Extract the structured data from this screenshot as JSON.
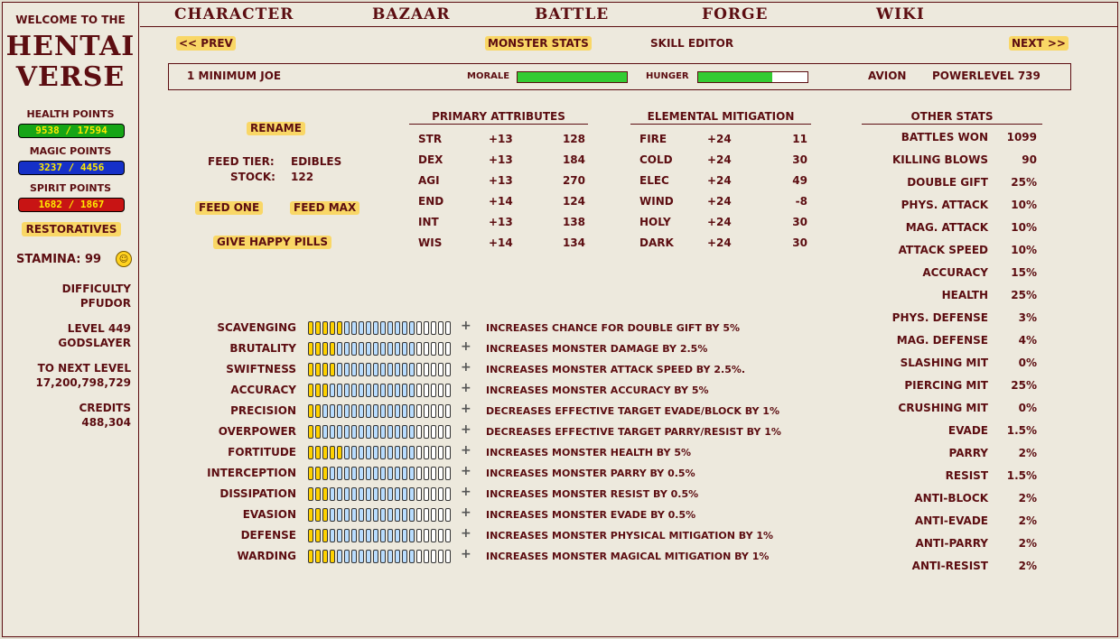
{
  "sidebar": {
    "welcome": "Welcome to the",
    "logo_line1": "HENTAI",
    "logo_line2": "VERSE",
    "health_label": "Health points",
    "health_value": "9538 / 17594",
    "magic_label": "Magic points",
    "magic_value": "3237 / 4456",
    "spirit_label": "Spirit points",
    "spirit_value": "1682 / 1867",
    "restoratives": "Restoratives",
    "stamina": "Stamina: 99",
    "difficulty_label": "Difficulty",
    "difficulty_value": "PFUDOR",
    "level_label": "Level 449",
    "level_title": "Godslayer",
    "next_level_label": "To next level",
    "next_level_value": "17,200,798,729",
    "credits_label": "Credits",
    "credits_value": "488,304",
    "colors": {
      "health": "#16a516",
      "magic": "#1530c8",
      "spirit": "#c81414"
    }
  },
  "nav": {
    "items": [
      "Character",
      "Bazaar",
      "Battle",
      "Forge",
      "Wiki"
    ]
  },
  "subnav": {
    "prev": "<< Prev",
    "monster_stats": "Monster Stats",
    "skill_editor": "Skill Editor",
    "next": "Next >>"
  },
  "monster": {
    "name": "1  Minimum Joe",
    "morale_label": "Morale",
    "morale_value": 1.0,
    "hunger_label": "Hunger",
    "hunger_value": 0.68,
    "owner": "Avion",
    "powerlevel": "Powerlevel  739"
  },
  "actions": {
    "rename": "Rename",
    "feed_tier_label": "Feed Tier:",
    "feed_tier_value": "Edibles",
    "stock_label": "Stock:",
    "stock_value": "122",
    "feed_one": "Feed One",
    "feed_max": "Feed Max",
    "give_pills": "Give Happy Pills"
  },
  "primary": {
    "header": "Primary Attributes",
    "rows": [
      {
        "name": "STR",
        "bonus": "+13",
        "value": "128"
      },
      {
        "name": "DEX",
        "bonus": "+13",
        "value": "184"
      },
      {
        "name": "AGI",
        "bonus": "+13",
        "value": "270"
      },
      {
        "name": "END",
        "bonus": "+14",
        "value": "124"
      },
      {
        "name": "INT",
        "bonus": "+13",
        "value": "138"
      },
      {
        "name": "WIS",
        "bonus": "+14",
        "value": "134"
      }
    ]
  },
  "elemental": {
    "header": "Elemental Mitigation",
    "rows": [
      {
        "name": "Fire",
        "bonus": "+24",
        "value": "11"
      },
      {
        "name": "Cold",
        "bonus": "+24",
        "value": "30"
      },
      {
        "name": "Elec",
        "bonus": "+24",
        "value": "49"
      },
      {
        "name": "Wind",
        "bonus": "+24",
        "value": "-8"
      },
      {
        "name": "Holy",
        "bonus": "+24",
        "value": "30"
      },
      {
        "name": "Dark",
        "bonus": "+24",
        "value": "30"
      }
    ]
  },
  "other": {
    "header": "Other Stats",
    "rows": [
      {
        "label": "Battles Won",
        "value": "1099"
      },
      {
        "label": "Killing Blows",
        "value": "90"
      },
      {
        "label": "Double Gift",
        "value": "25%"
      },
      {
        "label": "Phys. Attack",
        "value": "10%"
      },
      {
        "label": "Mag. Attack",
        "value": "10%"
      },
      {
        "label": "Attack Speed",
        "value": "10%"
      },
      {
        "label": "Accuracy",
        "value": "15%"
      },
      {
        "label": "Health",
        "value": "25%"
      },
      {
        "label": "Phys. Defense",
        "value": "3%"
      },
      {
        "label": "Mag. Defense",
        "value": "4%"
      },
      {
        "label": "Slashing Mit",
        "value": "0%"
      },
      {
        "label": "Piercing Mit",
        "value": "25%"
      },
      {
        "label": "Crushing Mit",
        "value": "0%"
      },
      {
        "label": "Evade",
        "value": "1.5%"
      },
      {
        "label": "Parry",
        "value": "2%"
      },
      {
        "label": "Resist",
        "value": "1.5%"
      },
      {
        "label": "Anti-Block",
        "value": "2%"
      },
      {
        "label": "Anti-Evade",
        "value": "2%"
      },
      {
        "label": "Anti-Parry",
        "value": "2%"
      },
      {
        "label": "Anti-Resist",
        "value": "2%"
      }
    ]
  },
  "skills": [
    {
      "name": "Scavenging",
      "level": 5,
      "desc": "Increases chance for double gift by 5%"
    },
    {
      "name": "Brutality",
      "level": 4,
      "desc": "Increases monster damage by 2.5%"
    },
    {
      "name": "Swiftness",
      "level": 4,
      "desc": "Increases monster attack speed by 2.5%."
    },
    {
      "name": "Accuracy",
      "level": 3,
      "desc": "Increases monster accuracy by 5%"
    },
    {
      "name": "Precision",
      "level": 2,
      "desc": "Decreases effective target evade/block by 1%"
    },
    {
      "name": "Overpower",
      "level": 2,
      "desc": "Decreases effective target parry/resist by 1%"
    },
    {
      "name": "Fortitude",
      "level": 5,
      "desc": "Increases monster health by 5%"
    },
    {
      "name": "Interception",
      "level": 3,
      "desc": "Increases monster parry by 0.5%"
    },
    {
      "name": "Dissipation",
      "level": 3,
      "desc": "Increases monster resist by 0.5%"
    },
    {
      "name": "Evasion",
      "level": 3,
      "desc": "Increases monster evade by 0.5%"
    },
    {
      "name": "Defense",
      "level": 3,
      "desc": "Increases monster physical mitigation by 1%"
    },
    {
      "name": "Warding",
      "level": 4,
      "desc": "Increases monster magical mitigation by 1%"
    }
  ],
  "skill_max": 20,
  "skill_blue_until": 15,
  "plus_icon": "+"
}
